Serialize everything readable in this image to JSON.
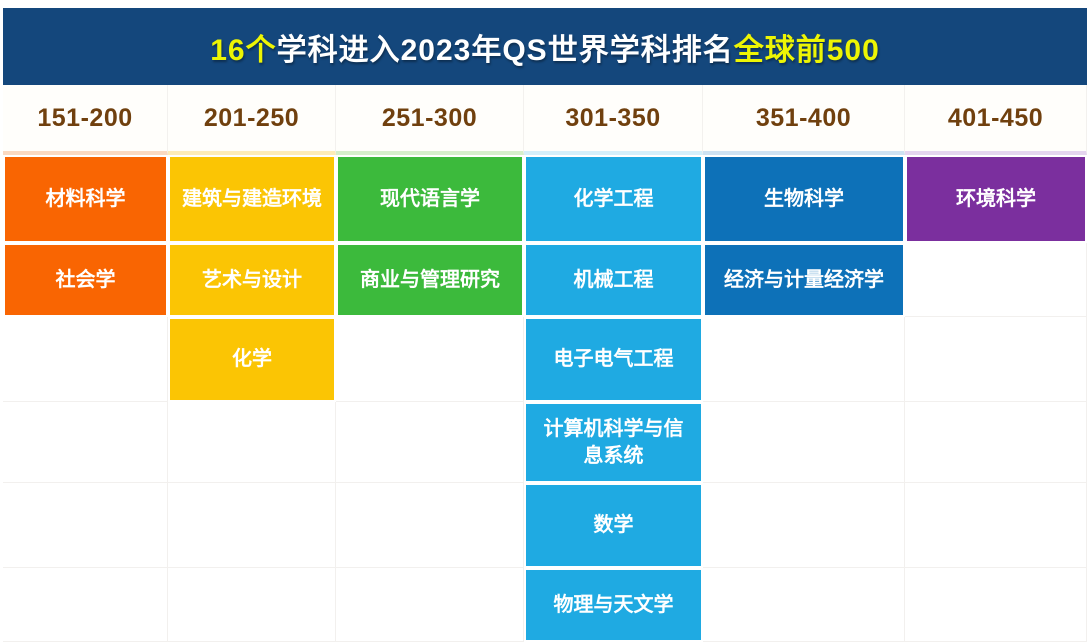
{
  "title": {
    "highlight_prefix": "16个",
    "main": "学科进入2023年QS世界学科排名",
    "highlight_suffix": "全球前500",
    "bar_color": "#14477C",
    "highlight_color": "#EDF504",
    "text_color": "#FFFFFF"
  },
  "header_text_color": "#70400E",
  "columns": [
    {
      "range": "151-200",
      "color": "#F96502",
      "tint": "#FAD9C1",
      "subjects": [
        "材料科学",
        "社会学"
      ]
    },
    {
      "range": "201-250",
      "color": "#FBC504",
      "tint": "#FDECB8",
      "subjects": [
        "建筑与建造环境",
        "艺术与设计",
        "化学"
      ]
    },
    {
      "range": "251-300",
      "color": "#3CBA3C",
      "tint": "#D5EFCB",
      "subjects": [
        "现代语言学",
        "商业与管理研究"
      ]
    },
    {
      "range": "301-350",
      "color": "#1FAAE2",
      "tint": "#D4EFFA",
      "subjects": [
        "化学工程",
        "机械工程",
        "电子电气工程",
        "计算机科学与信息系统",
        "数学",
        "物理与天文学"
      ]
    },
    {
      "range": "351-400",
      "color": "#0D71B8",
      "tint": "#CEE2F2",
      "subjects": [
        "生物科学",
        "经济与计量经济学"
      ]
    },
    {
      "range": "401-450",
      "color": "#7B2F9E",
      "tint": "#E5D5EF",
      "subjects": [
        "环境科学"
      ]
    }
  ],
  "chart_data": {
    "type": "table",
    "title": "16个学科进入2023年QS世界学科排名全球前500",
    "categories": [
      "151-200",
      "201-250",
      "251-300",
      "301-350",
      "351-400",
      "401-450"
    ],
    "series": [
      {
        "name": "151-200",
        "values": [
          "材料科学",
          "社会学"
        ]
      },
      {
        "name": "201-250",
        "values": [
          "建筑与建造环境",
          "艺术与设计",
          "化学"
        ]
      },
      {
        "name": "251-300",
        "values": [
          "现代语言学",
          "商业与管理研究"
        ]
      },
      {
        "name": "301-350",
        "values": [
          "化学工程",
          "机械工程",
          "电子电气工程",
          "计算机科学与信息系统",
          "数学",
          "物理与天文学"
        ]
      },
      {
        "name": "351-400",
        "values": [
          "生物科学",
          "经济与计量经济学"
        ]
      },
      {
        "name": "401-450",
        "values": [
          "环境科学"
        ]
      }
    ],
    "total_subjects": 16,
    "legend_position": "none",
    "grid": true
  }
}
